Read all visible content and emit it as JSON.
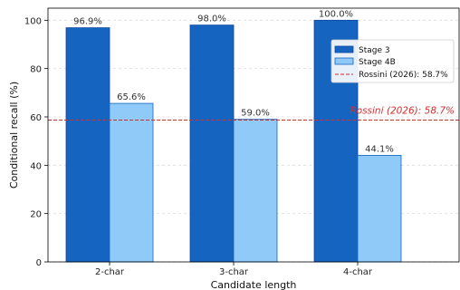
{
  "chart_data": {
    "type": "bar",
    "xlabel": "Candidate length",
    "ylabel": "Conditional recall (%)",
    "ylim": [
      0,
      105
    ],
    "yticks": [
      0,
      20,
      40,
      60,
      80,
      100
    ],
    "categories": [
      "2-char",
      "3-char",
      "4-char"
    ],
    "series": [
      {
        "name": "Stage 3",
        "values": [
          96.9,
          98.0,
          100.0
        ],
        "labels": [
          "96.9%",
          "98.0%",
          "100.0%"
        ],
        "color": "#1565c0",
        "edge": "#0d47a1"
      },
      {
        "name": "Stage 4B",
        "values": [
          65.6,
          59.0,
          44.1
        ],
        "labels": [
          "65.6%",
          "59.0%",
          "44.1%"
        ],
        "color": "#90caf9",
        "edge": "#1565c0"
      }
    ],
    "reference_line": {
      "value": 58.7,
      "label": "Rossini (2026): 58.7%",
      "legend_label": "Rossini (2026): 58.7%",
      "color": "#d32f2f"
    },
    "grid": true,
    "legend_position": "upper-right"
  }
}
